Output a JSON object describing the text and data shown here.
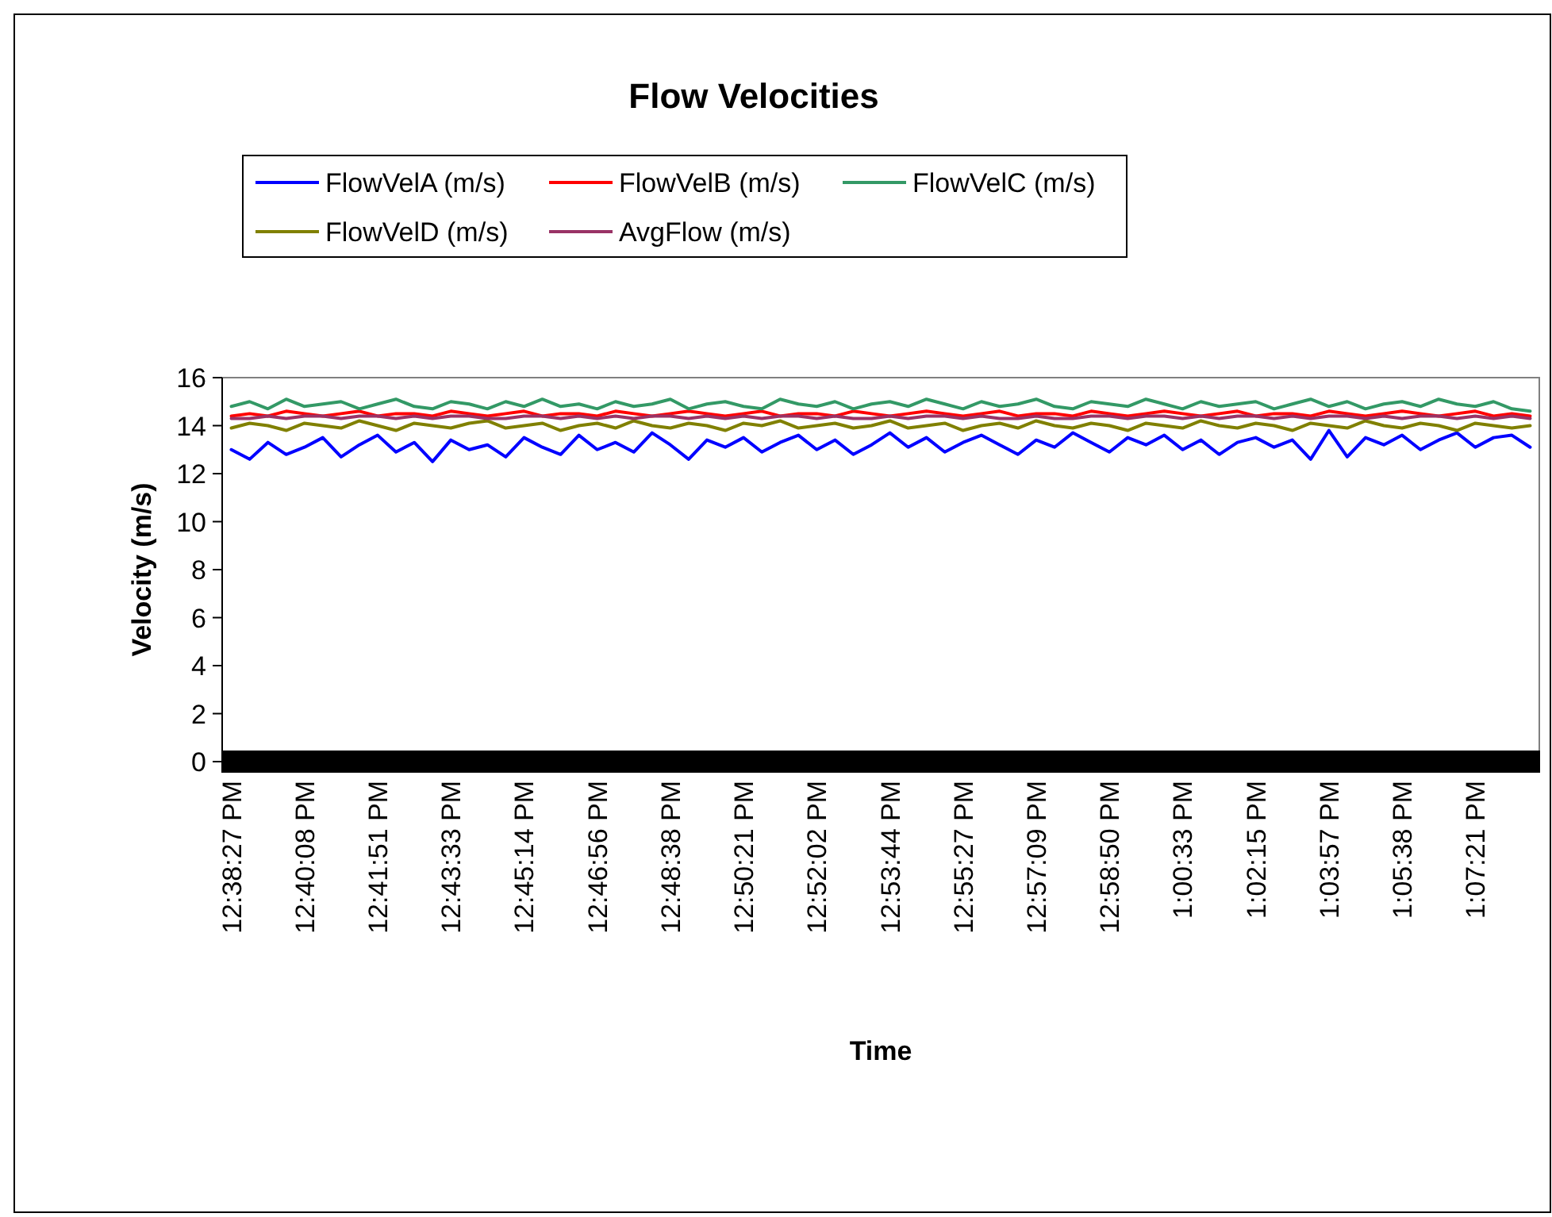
{
  "chart_data": {
    "type": "line",
    "title": "Flow Velocities",
    "xlabel": "Time",
    "ylabel": "Velocity (m/s)",
    "categories": [
      "12:38:27 PM",
      null,
      null,
      null,
      "12:40:08 PM",
      null,
      null,
      null,
      "12:41:51 PM",
      null,
      null,
      null,
      "12:43:33 PM",
      null,
      null,
      null,
      "12:45:14 PM",
      null,
      null,
      null,
      "12:46:56 PM",
      null,
      null,
      null,
      "12:48:38 PM",
      null,
      null,
      null,
      "12:50:21 PM",
      null,
      null,
      null,
      "12:52:02 PM",
      null,
      null,
      null,
      "12:53:44 PM",
      null,
      null,
      null,
      "12:55:27 PM",
      null,
      null,
      null,
      "12:57:09 PM",
      null,
      null,
      null,
      "12:58:50 PM",
      null,
      null,
      null,
      "1:00:33 PM",
      null,
      null,
      null,
      "1:02:15 PM",
      null,
      null,
      null,
      "1:03:57 PM",
      null,
      null,
      null,
      "1:05:38 PM",
      null,
      null,
      null,
      "1:07:21 PM",
      null,
      null,
      null
    ],
    "series": [
      {
        "name": "FlowVelA (m/s)",
        "color": "#0000ff",
        "values": [
          13.0,
          12.6,
          13.3,
          12.8,
          13.1,
          13.5,
          12.7,
          13.2,
          13.6,
          12.9,
          13.3,
          12.5,
          13.4,
          13.0,
          13.2,
          12.7,
          13.5,
          13.1,
          12.8,
          13.6,
          13.0,
          13.3,
          12.9,
          13.7,
          13.2,
          12.6,
          13.4,
          13.1,
          13.5,
          12.9,
          13.3,
          13.6,
          13.0,
          13.4,
          12.8,
          13.2,
          13.7,
          13.1,
          13.5,
          12.9,
          13.3,
          13.6,
          13.2,
          12.8,
          13.4,
          13.1,
          13.7,
          13.3,
          12.9,
          13.5,
          13.2,
          13.6,
          13.0,
          13.4,
          12.8,
          13.3,
          13.5,
          13.1,
          13.4,
          12.6,
          13.8,
          12.7,
          13.5,
          13.2,
          13.6,
          13.0,
          13.4,
          13.7,
          13.1,
          13.5,
          13.6,
          13.1
        ]
      },
      {
        "name": "FlowVelB (m/s)",
        "color": "#ff0000",
        "values": [
          14.4,
          14.5,
          14.4,
          14.6,
          14.5,
          14.4,
          14.5,
          14.6,
          14.4,
          14.5,
          14.5,
          14.4,
          14.6,
          14.5,
          14.4,
          14.5,
          14.6,
          14.4,
          14.5,
          14.5,
          14.4,
          14.6,
          14.5,
          14.4,
          14.5,
          14.6,
          14.5,
          14.4,
          14.5,
          14.6,
          14.4,
          14.5,
          14.5,
          14.4,
          14.6,
          14.5,
          14.4,
          14.5,
          14.6,
          14.5,
          14.4,
          14.5,
          14.6,
          14.4,
          14.5,
          14.5,
          14.4,
          14.6,
          14.5,
          14.4,
          14.5,
          14.6,
          14.5,
          14.4,
          14.5,
          14.6,
          14.4,
          14.5,
          14.5,
          14.4,
          14.6,
          14.5,
          14.4,
          14.5,
          14.6,
          14.5,
          14.4,
          14.5,
          14.6,
          14.4,
          14.5,
          14.4
        ]
      },
      {
        "name": "FlowVelC (m/s)",
        "color": "#339966",
        "values": [
          14.8,
          15.0,
          14.7,
          15.1,
          14.8,
          14.9,
          15.0,
          14.7,
          14.9,
          15.1,
          14.8,
          14.7,
          15.0,
          14.9,
          14.7,
          15.0,
          14.8,
          15.1,
          14.8,
          14.9,
          14.7,
          15.0,
          14.8,
          14.9,
          15.1,
          14.7,
          14.9,
          15.0,
          14.8,
          14.7,
          15.1,
          14.9,
          14.8,
          15.0,
          14.7,
          14.9,
          15.0,
          14.8,
          15.1,
          14.9,
          14.7,
          15.0,
          14.8,
          14.9,
          15.1,
          14.8,
          14.7,
          15.0,
          14.9,
          14.8,
          15.1,
          14.9,
          14.7,
          15.0,
          14.8,
          14.9,
          15.0,
          14.7,
          14.9,
          15.1,
          14.8,
          15.0,
          14.7,
          14.9,
          15.0,
          14.8,
          15.1,
          14.9,
          14.8,
          15.0,
          14.7,
          14.6
        ]
      },
      {
        "name": "FlowVelD (m/s)",
        "color": "#808000",
        "values": [
          13.9,
          14.1,
          14.0,
          13.8,
          14.1,
          14.0,
          13.9,
          14.2,
          14.0,
          13.8,
          14.1,
          14.0,
          13.9,
          14.1,
          14.2,
          13.9,
          14.0,
          14.1,
          13.8,
          14.0,
          14.1,
          13.9,
          14.2,
          14.0,
          13.9,
          14.1,
          14.0,
          13.8,
          14.1,
          14.0,
          14.2,
          13.9,
          14.0,
          14.1,
          13.9,
          14.0,
          14.2,
          13.9,
          14.0,
          14.1,
          13.8,
          14.0,
          14.1,
          13.9,
          14.2,
          14.0,
          13.9,
          14.1,
          14.0,
          13.8,
          14.1,
          14.0,
          13.9,
          14.2,
          14.0,
          13.9,
          14.1,
          14.0,
          13.8,
          14.1,
          14.0,
          13.9,
          14.2,
          14.0,
          13.9,
          14.1,
          14.0,
          13.8,
          14.1,
          14.0,
          13.9,
          14.0
        ]
      },
      {
        "name": "AvgFlow (m/s)",
        "color": "#993366",
        "values": [
          14.3,
          14.3,
          14.4,
          14.3,
          14.4,
          14.4,
          14.3,
          14.4,
          14.4,
          14.3,
          14.4,
          14.3,
          14.4,
          14.4,
          14.3,
          14.3,
          14.4,
          14.4,
          14.3,
          14.4,
          14.3,
          14.4,
          14.3,
          14.4,
          14.4,
          14.3,
          14.4,
          14.3,
          14.4,
          14.3,
          14.4,
          14.4,
          14.3,
          14.4,
          14.3,
          14.3,
          14.4,
          14.3,
          14.4,
          14.4,
          14.3,
          14.4,
          14.3,
          14.3,
          14.4,
          14.3,
          14.3,
          14.4,
          14.4,
          14.3,
          14.4,
          14.4,
          14.3,
          14.4,
          14.3,
          14.4,
          14.4,
          14.3,
          14.4,
          14.3,
          14.4,
          14.4,
          14.3,
          14.4,
          14.3,
          14.4,
          14.4,
          14.3,
          14.4,
          14.3,
          14.4,
          14.3
        ]
      }
    ],
    "ylim": [
      0,
      16
    ],
    "yticks": [
      0,
      2,
      4,
      6,
      8,
      10,
      12,
      14,
      16
    ],
    "grid": false,
    "legend": "top",
    "marker": "none",
    "line_style": "solid"
  }
}
